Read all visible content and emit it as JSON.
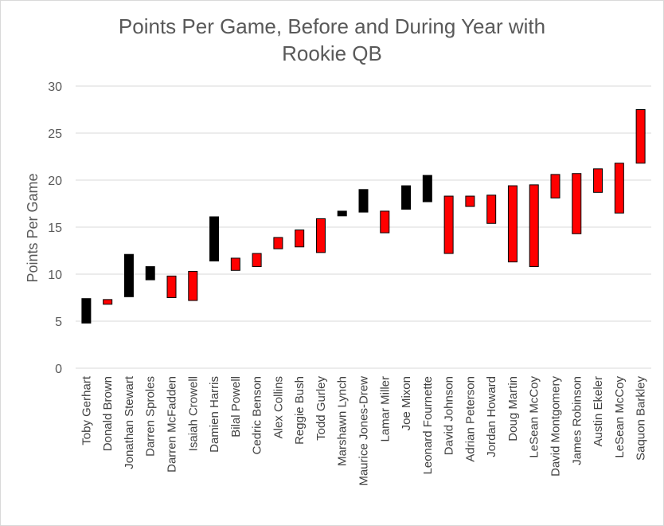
{
  "chart_data": {
    "type": "bar",
    "subtype": "floating-range",
    "title_lines": [
      "Points Per Game, Before and During Year with",
      "Rookie QB"
    ],
    "xlabel": "",
    "ylabel": "Points Per Game",
    "ylim": [
      0,
      30
    ],
    "yticks": [
      0,
      5,
      10,
      15,
      20,
      25,
      30
    ],
    "grid": true,
    "legend": "none",
    "colors": {
      "increase": "#000000",
      "decrease": "#ff0000",
      "grid": "#d9d9d9",
      "text": "#595959"
    },
    "categories": [
      "Toby Gerhart",
      "Donald Brown",
      "Jonathan Stewart",
      "Darren Sproles",
      "Darren McFadden",
      "Isaiah Crowell",
      "Damien Harris",
      "Bilal Powell",
      "Cedric Benson",
      "Alex Collins",
      "Reggie Bush",
      "Todd Gurley",
      "Marshawn Lynch",
      "Maurice Jones-Drew",
      "Lamar Miller",
      "Joe Mixon",
      "Leonard Fournette",
      "David Johnson",
      "Adrian Peterson",
      "Jordan Howard",
      "Doug Martin",
      "LeSean McCoy",
      "David Montgomery",
      "James Robinson",
      "Austin Ekeler",
      "LeSean McCoy",
      "Saquon Barkley"
    ],
    "series": [
      {
        "name": "",
        "values": [
          [
            4.8,
            7.4
          ],
          [
            6.8,
            7.3
          ],
          [
            7.6,
            12.1
          ],
          [
            9.4,
            10.8
          ],
          [
            7.5,
            9.8
          ],
          [
            7.2,
            10.3
          ],
          [
            11.4,
            16.1
          ],
          [
            10.4,
            11.7
          ],
          [
            10.8,
            12.2
          ],
          [
            12.7,
            13.9
          ],
          [
            12.9,
            14.7
          ],
          [
            12.3,
            15.9
          ],
          [
            16.2,
            16.7
          ],
          [
            16.6,
            19.0
          ],
          [
            14.4,
            16.7
          ],
          [
            16.9,
            19.4
          ],
          [
            17.7,
            20.5
          ],
          [
            12.2,
            18.3
          ],
          [
            17.2,
            18.3
          ],
          [
            15.4,
            18.4
          ],
          [
            11.3,
            19.4
          ],
          [
            10.8,
            19.5
          ],
          [
            18.1,
            20.6
          ],
          [
            14.3,
            20.7
          ],
          [
            18.7,
            21.2
          ],
          [
            16.5,
            21.8
          ],
          [
            21.8,
            27.5
          ]
        ]
      }
    ],
    "direction": [
      "increase",
      "decrease",
      "increase",
      "increase",
      "decrease",
      "decrease",
      "increase",
      "decrease",
      "decrease",
      "decrease",
      "decrease",
      "decrease",
      "increase",
      "increase",
      "decrease",
      "increase",
      "increase",
      "decrease",
      "decrease",
      "decrease",
      "decrease",
      "decrease",
      "decrease",
      "decrease",
      "decrease",
      "decrease",
      "decrease"
    ]
  }
}
